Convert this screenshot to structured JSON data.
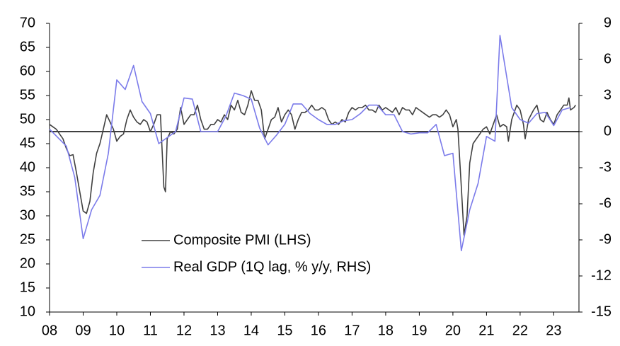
{
  "chart_data": {
    "type": "line",
    "xlim": [
      2008,
      2023.75
    ],
    "xticks": [
      {
        "value": 2008,
        "label": "08"
      },
      {
        "value": 2009,
        "label": "09"
      },
      {
        "value": 2010,
        "label": "10"
      },
      {
        "value": 2011,
        "label": "11"
      },
      {
        "value": 2012,
        "label": "12"
      },
      {
        "value": 2013,
        "label": "13"
      },
      {
        "value": 2014,
        "label": "14"
      },
      {
        "value": 2015,
        "label": "15"
      },
      {
        "value": 2016,
        "label": "16"
      },
      {
        "value": 2017,
        "label": "17"
      },
      {
        "value": 2018,
        "label": "18"
      },
      {
        "value": 2019,
        "label": "19"
      },
      {
        "value": 2020,
        "label": "20"
      },
      {
        "value": 2021,
        "label": "21"
      },
      {
        "value": 2022,
        "label": "22"
      },
      {
        "value": 2023,
        "label": "23"
      }
    ],
    "ylim": [
      10,
      70
    ],
    "yticks": [
      10,
      15,
      20,
      25,
      30,
      35,
      40,
      45,
      50,
      55,
      60,
      65,
      70
    ],
    "y2lim": [
      -15,
      9
    ],
    "y2ticks": [
      -15,
      -12,
      -9,
      -6,
      -3,
      0,
      3,
      6,
      9
    ],
    "zero_line": true,
    "legend": "lower-left",
    "series": [
      {
        "name": "Composite PMI (LHS)",
        "color": "#404040",
        "x": [
          2008.0,
          2008.1,
          2008.2,
          2008.3,
          2008.4,
          2008.5,
          2008.6,
          2008.7,
          2008.8,
          2008.9,
          2009.0,
          2009.1,
          2009.2,
          2009.3,
          2009.4,
          2009.5,
          2009.6,
          2009.7,
          2009.8,
          2009.9,
          2010.0,
          2010.1,
          2010.2,
          2010.3,
          2010.4,
          2010.5,
          2010.6,
          2010.7,
          2010.8,
          2010.9,
          2011.0,
          2011.1,
          2011.2,
          2011.3,
          2011.4,
          2011.45,
          2011.5,
          2011.6,
          2011.7,
          2011.8,
          2011.9,
          2012.0,
          2012.1,
          2012.2,
          2012.3,
          2012.4,
          2012.5,
          2012.6,
          2012.7,
          2012.8,
          2012.9,
          2013.0,
          2013.1,
          2013.2,
          2013.3,
          2013.4,
          2013.5,
          2013.6,
          2013.7,
          2013.8,
          2013.9,
          2014.0,
          2014.1,
          2014.2,
          2014.3,
          2014.4,
          2014.5,
          2014.6,
          2014.7,
          2014.8,
          2014.9,
          2015.0,
          2015.1,
          2015.2,
          2015.3,
          2015.4,
          2015.5,
          2015.6,
          2015.7,
          2015.8,
          2015.9,
          2016.0,
          2016.1,
          2016.2,
          2016.3,
          2016.4,
          2016.5,
          2016.6,
          2016.7,
          2016.8,
          2016.9,
          2017.0,
          2017.1,
          2017.2,
          2017.3,
          2017.4,
          2017.5,
          2017.6,
          2017.7,
          2017.8,
          2017.9,
          2018.0,
          2018.1,
          2018.2,
          2018.3,
          2018.4,
          2018.5,
          2018.6,
          2018.7,
          2018.8,
          2018.9,
          2019.0,
          2019.1,
          2019.2,
          2019.3,
          2019.4,
          2019.5,
          2019.6,
          2019.7,
          2019.8,
          2019.9,
          2020.0,
          2020.1,
          2020.15,
          2020.25,
          2020.33,
          2020.42,
          2020.5,
          2020.6,
          2020.7,
          2020.8,
          2020.9,
          2021.0,
          2021.1,
          2021.2,
          2021.3,
          2021.4,
          2021.5,
          2021.6,
          2021.65,
          2021.75,
          2021.9,
          2022.0,
          2022.1,
          2022.15,
          2022.25,
          2022.4,
          2022.5,
          2022.6,
          2022.7,
          2022.8,
          2022.9,
          2023.0,
          2023.1,
          2023.2,
          2023.3,
          2023.4,
          2023.45,
          2023.5,
          2023.6,
          2023.65
        ],
        "values": [
          49,
          48.5,
          48,
          47,
          46,
          44,
          42.5,
          42.7,
          39,
          35,
          31,
          30.5,
          33,
          39,
          43,
          45,
          48,
          51,
          49.5,
          48,
          45.5,
          46.5,
          47,
          50,
          52,
          50.5,
          49.5,
          49,
          50,
          49.5,
          47.5,
          49,
          51,
          51,
          36,
          35,
          46,
          47.5,
          47,
          48,
          52.5,
          49,
          50,
          51,
          51,
          53,
          50,
          48,
          48,
          49,
          49,
          50,
          49.5,
          51,
          50,
          53,
          52,
          54,
          51.5,
          51,
          53,
          56,
          54,
          54,
          52,
          46,
          48,
          50,
          50.5,
          52.5,
          49.5,
          51,
          52,
          51,
          48,
          50,
          51.5,
          51.5,
          52,
          53,
          52,
          52,
          52.5,
          52,
          50,
          49,
          49.5,
          49,
          50,
          49.5,
          51.5,
          52.5,
          52,
          52.5,
          52.5,
          53,
          52,
          52,
          51.5,
          53,
          52,
          52.5,
          52,
          51.5,
          52.5,
          51,
          52.5,
          52,
          52,
          51,
          52.5,
          52,
          51.5,
          51,
          50.5,
          51,
          51,
          50.5,
          51,
          52,
          51,
          48.5,
          50,
          48,
          36,
          26,
          30,
          41,
          45,
          46,
          47,
          48,
          48.5,
          47,
          49,
          51,
          48.5,
          49,
          48.5,
          45.5,
          50,
          53,
          52,
          49,
          46,
          50,
          52,
          53,
          50,
          49.5,
          51.5,
          50,
          49,
          51,
          52,
          53,
          53,
          54.5,
          52,
          52.5,
          53
        ]
      },
      {
        "name": "Real GDP (1Q lag, % y/y, RHS)",
        "color": "#7b7bea",
        "axis": "y2",
        "x": [
          2008.0,
          2008.5,
          2008.75,
          2009.0,
          2009.25,
          2009.5,
          2009.75,
          2010.0,
          2010.25,
          2010.5,
          2010.75,
          2011.0,
          2011.25,
          2011.5,
          2011.75,
          2012.0,
          2012.25,
          2012.5,
          2012.75,
          2013.0,
          2013.25,
          2013.5,
          2013.75,
          2014.0,
          2014.25,
          2014.5,
          2014.75,
          2015.0,
          2015.25,
          2015.5,
          2015.75,
          2016.0,
          2016.25,
          2016.5,
          2016.75,
          2017.0,
          2017.25,
          2017.5,
          2017.75,
          2018.0,
          2018.25,
          2018.5,
          2018.75,
          2019.0,
          2019.25,
          2019.5,
          2019.75,
          2020.0,
          2020.25,
          2020.5,
          2020.75,
          2021.0,
          2021.25,
          2021.4,
          2021.75,
          2022.0,
          2022.25,
          2022.5,
          2022.75,
          2023.0,
          2023.25,
          2023.5
        ],
        "values": [
          0.2,
          -1.2,
          -3.8,
          -8.9,
          -6.5,
          -5.3,
          -1.8,
          4.3,
          3.5,
          5.5,
          2.5,
          1.5,
          -1.0,
          -0.5,
          0,
          2.8,
          2.7,
          0,
          0,
          0,
          1.3,
          3.2,
          3.0,
          2.7,
          0.3,
          -1.1,
          -0.3,
          0.6,
          2.3,
          2.3,
          1.5,
          1.0,
          0.6,
          0.6,
          0.9,
          1.0,
          1.5,
          2.2,
          2.2,
          1.4,
          1.4,
          0.0,
          -0.2,
          -0.1,
          -0.1,
          0.6,
          -2.0,
          -1.8,
          -9.9,
          -6.5,
          -4.3,
          -0.4,
          -0.8,
          8.0,
          2.0,
          1.0,
          0.7,
          1.5,
          1.6,
          0.5,
          1.8,
          2.0
        ]
      }
    ]
  }
}
